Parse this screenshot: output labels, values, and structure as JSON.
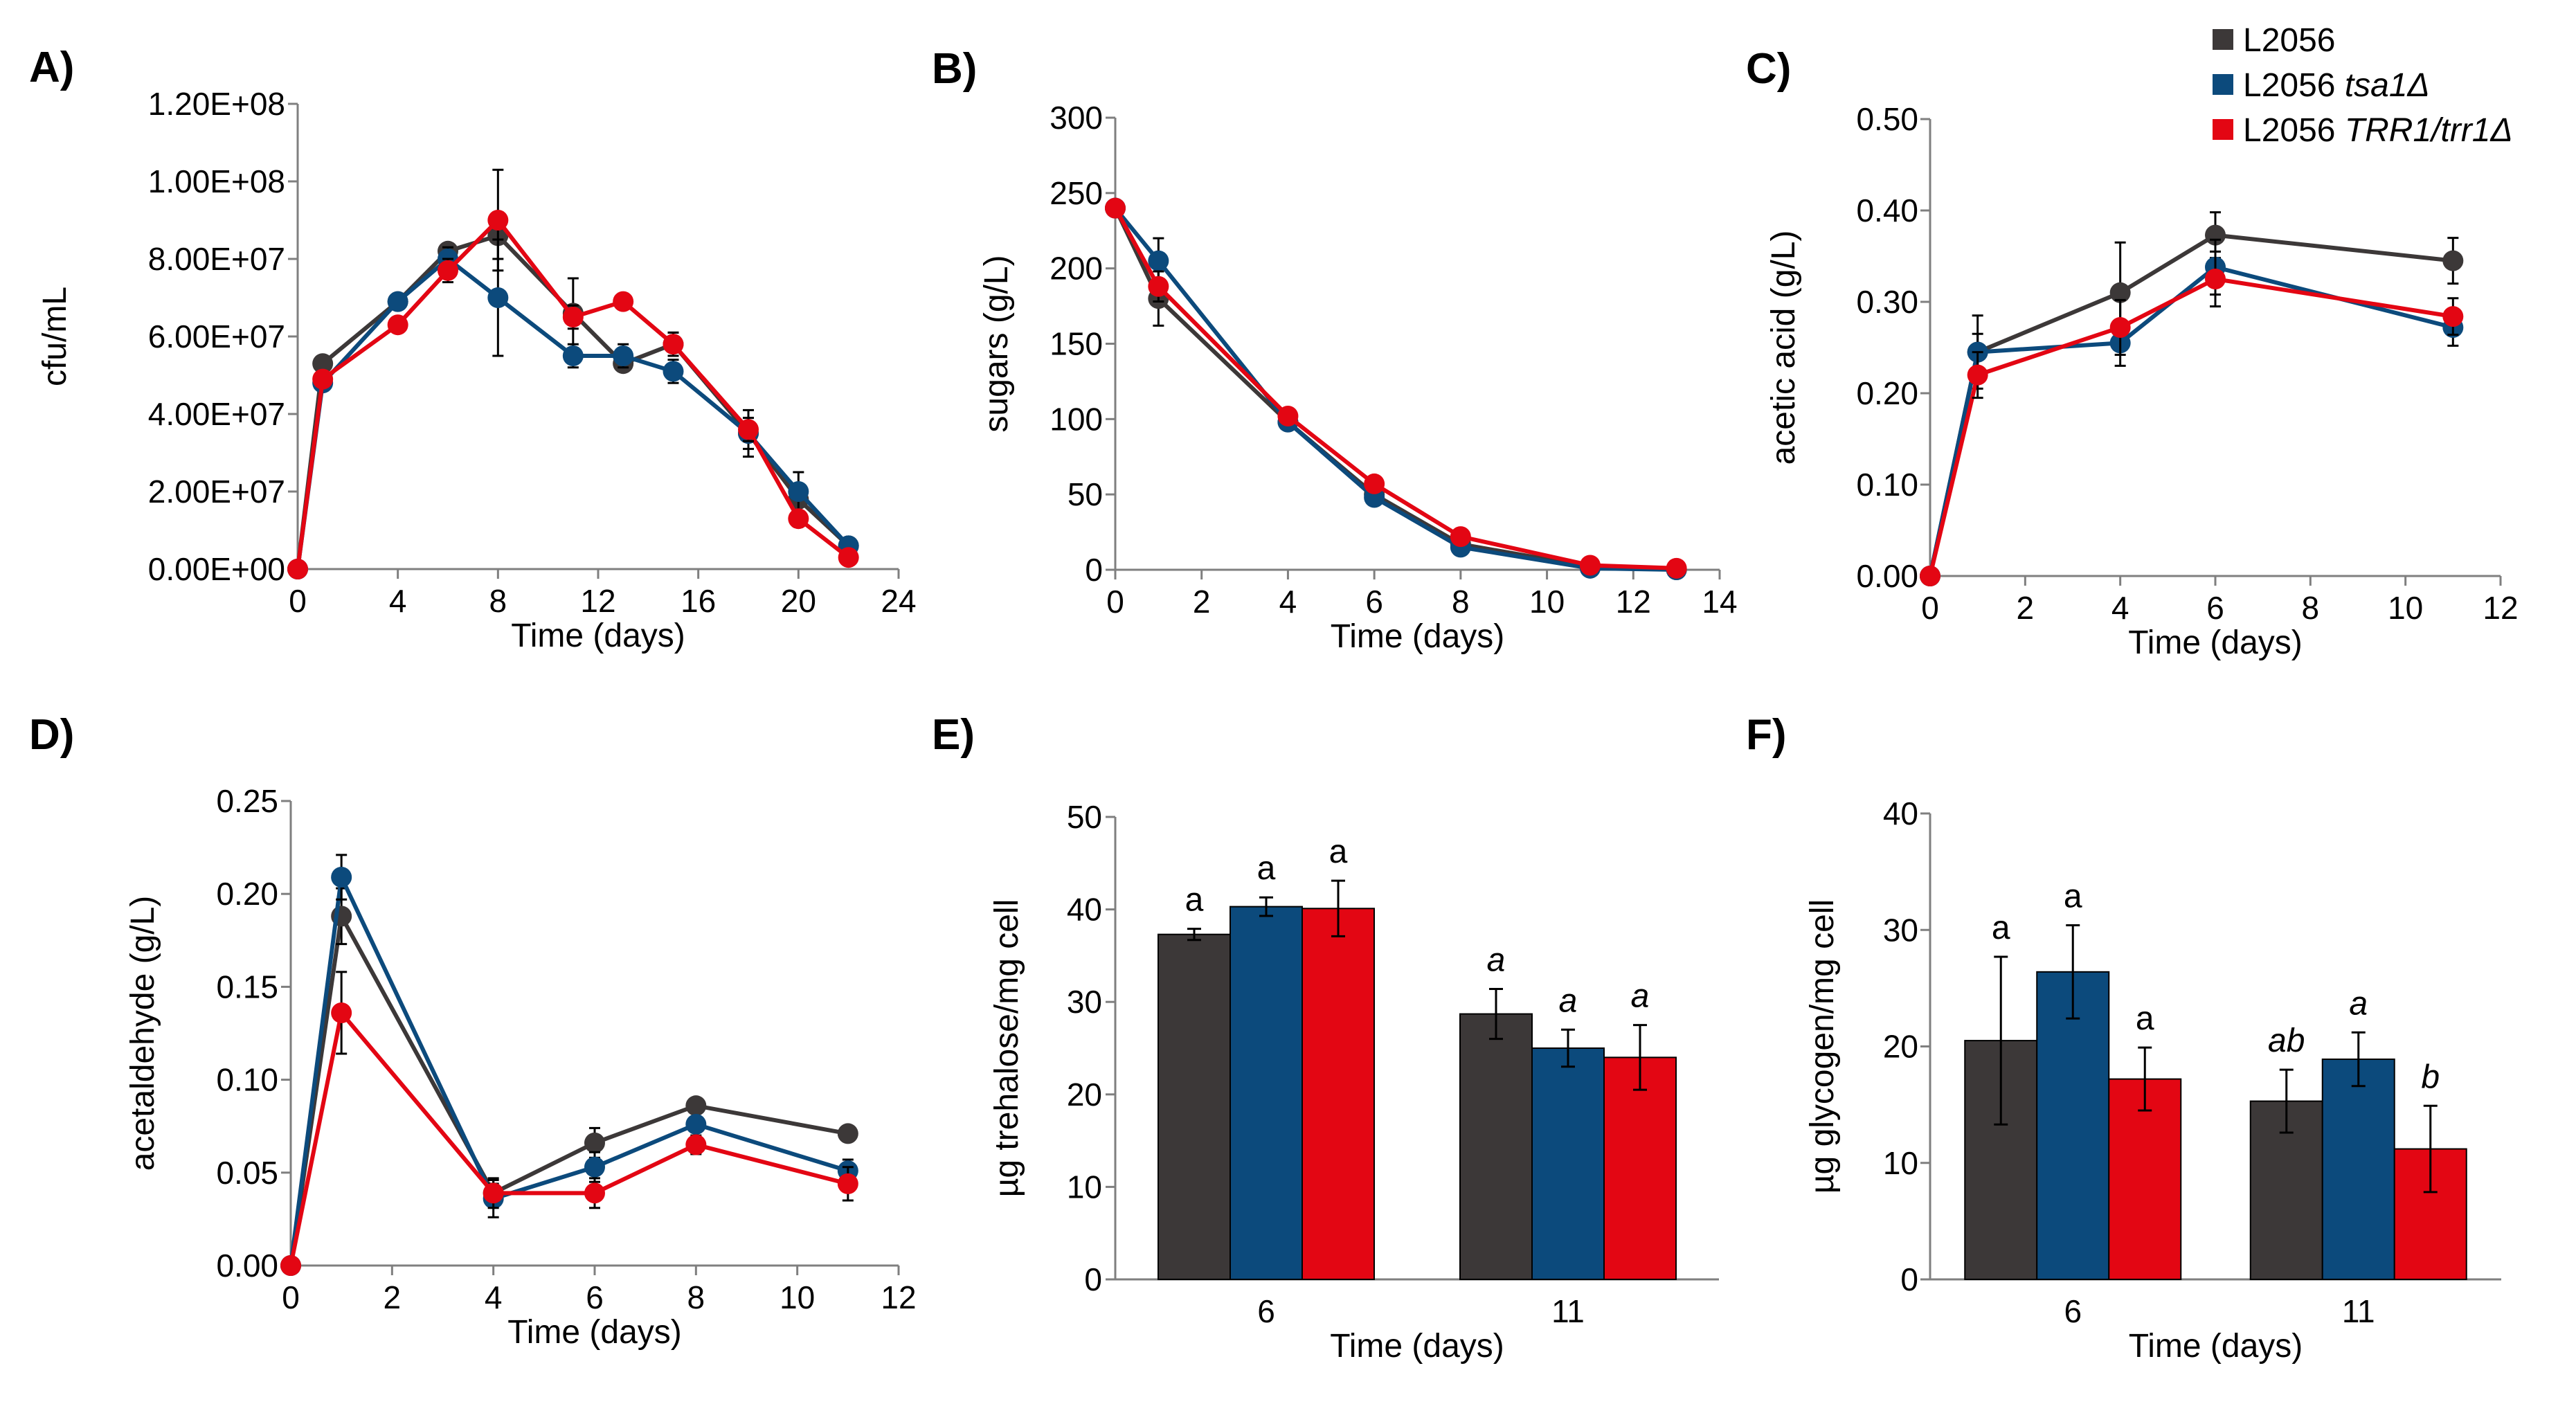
{
  "colors": {
    "L2056": "#3c3838",
    "tsa1": "#0c4a7c",
    "trr1": "#e30613",
    "axis": "#7f7f7f",
    "errorbar": "#000000"
  },
  "legend": {
    "items": [
      {
        "key": "L2056",
        "prefix": "L2056",
        "italic": ""
      },
      {
        "key": "tsa1",
        "prefix": "L2056 ",
        "italic": "tsa1Δ"
      },
      {
        "key": "trr1",
        "prefix": "L2056 ",
        "italic": "TRR1/trr1Δ"
      }
    ]
  },
  "chart_data": [
    {
      "id": "A",
      "panel_label": "A)",
      "type": "line",
      "xlabel": "Time (days)",
      "ylabel": "cfu/mL",
      "xlim": [
        0,
        24
      ],
      "ylim": [
        0,
        120000000
      ],
      "xticks": [
        0,
        4,
        8,
        12,
        16,
        20,
        24
      ],
      "yticks": [
        0,
        20000000,
        40000000,
        60000000,
        80000000,
        100000000,
        120000000
      ],
      "ytick_labels": [
        "0.00E+00",
        "2.00E+07",
        "4.00E+07",
        "6.00E+07",
        "8.00E+07",
        "1.00E+08",
        "1.20E+08"
      ],
      "xtick_labels": [
        "0",
        "4",
        "8",
        "12",
        "16",
        "20",
        "24"
      ],
      "series": [
        {
          "name": "L2056",
          "x": [
            0,
            1,
            4,
            6,
            8,
            11,
            13,
            15,
            18,
            20,
            22
          ],
          "y": [
            0,
            53000000,
            69000000,
            82000000,
            86000000,
            66000000,
            53000000,
            58000000,
            35000000,
            18000000,
            6000000
          ],
          "err": [
            0,
            2000000,
            2000000,
            2000000,
            6000000,
            9000000,
            2000000,
            3000000,
            4000000,
            3000000,
            1000000
          ]
        },
        {
          "name": "L2056 tsa1Δ",
          "x": [
            0,
            1,
            4,
            6,
            8,
            11,
            13,
            15,
            18,
            20,
            22
          ],
          "y": [
            0,
            48000000,
            69000000,
            80000000,
            70000000,
            55000000,
            55000000,
            51000000,
            35000000,
            20000000,
            6000000
          ],
          "err": [
            0,
            2000000,
            2000000,
            3000000,
            15000000,
            3000000,
            3000000,
            3000000,
            6000000,
            5000000,
            1000000
          ]
        },
        {
          "name": "L2056 TRR1/trr1Δ",
          "x": [
            0,
            1,
            4,
            6,
            8,
            11,
            13,
            15,
            18,
            20,
            22
          ],
          "y": [
            0,
            49000000,
            63000000,
            77000000,
            90000000,
            65000000,
            69000000,
            58000000,
            36000000,
            13000000,
            3000000
          ],
          "err": [
            0,
            2000000,
            2000000,
            3000000,
            13000000,
            3000000,
            2000000,
            3000000,
            3000000,
            2000000,
            1000000
          ]
        }
      ]
    },
    {
      "id": "B",
      "panel_label": "B)",
      "type": "line",
      "xlabel": "Time (days)",
      "ylabel": "sugars (g/L)",
      "xlim": [
        0,
        14
      ],
      "ylim": [
        0,
        300
      ],
      "xticks": [
        0,
        2,
        4,
        6,
        8,
        10,
        12,
        14
      ],
      "yticks": [
        0,
        50,
        100,
        150,
        200,
        250,
        300
      ],
      "xtick_labels": [
        "0",
        "2",
        "4",
        "6",
        "8",
        "10",
        "12",
        "14"
      ],
      "ytick_labels": [
        "0",
        "50",
        "100",
        "150",
        "200",
        "250",
        "300"
      ],
      "series": [
        {
          "name": "L2056",
          "x": [
            0,
            1,
            4,
            6,
            8,
            11,
            13
          ],
          "y": [
            240,
            180,
            98,
            50,
            17,
            2,
            0
          ],
          "err": [
            0,
            18,
            3,
            3,
            3,
            1,
            0
          ]
        },
        {
          "name": "L2056 tsa1Δ",
          "x": [
            0,
            1,
            4,
            6,
            8,
            11,
            13
          ],
          "y": [
            240,
            205,
            98,
            48,
            15,
            1,
            0
          ],
          "err": [
            0,
            15,
            3,
            3,
            3,
            1,
            0
          ]
        },
        {
          "name": "L2056 TRR1/trr1Δ",
          "x": [
            0,
            1,
            4,
            6,
            8,
            11,
            13
          ],
          "y": [
            240,
            188,
            102,
            57,
            22,
            3,
            1
          ],
          "err": [
            0,
            10,
            3,
            3,
            3,
            1,
            0
          ]
        }
      ]
    },
    {
      "id": "C",
      "panel_label": "C)",
      "type": "line",
      "xlabel": "Time (days)",
      "ylabel": "acetic acid (g/L)",
      "xlim": [
        0,
        12
      ],
      "ylim": [
        0,
        0.5
      ],
      "xticks": [
        0,
        2,
        4,
        6,
        8,
        10,
        12
      ],
      "yticks": [
        0,
        0.1,
        0.2,
        0.3,
        0.4,
        0.5
      ],
      "xtick_labels": [
        "0",
        "2",
        "4",
        "6",
        "8",
        "10",
        "12"
      ],
      "ytick_labels": [
        "0.00",
        "0.10",
        "0.20",
        "0.30",
        "0.40",
        "0.50"
      ],
      "series": [
        {
          "name": "L2056",
          "x": [
            0,
            1,
            4,
            6,
            11
          ],
          "y": [
            0,
            0.245,
            0.31,
            0.373,
            0.345
          ],
          "err": [
            0,
            0.04,
            0.055,
            0.025,
            0.025
          ]
        },
        {
          "name": "L2056 tsa1Δ",
          "x": [
            0,
            1,
            4,
            6,
            11
          ],
          "y": [
            0,
            0.245,
            0.255,
            0.338,
            0.272
          ],
          "err": [
            0,
            0.02,
            0.025,
            0.03,
            0.02
          ]
        },
        {
          "name": "L2056 TRR1/trr1Δ",
          "x": [
            0,
            1,
            4,
            6,
            11
          ],
          "y": [
            0,
            0.22,
            0.272,
            0.325,
            0.284
          ],
          "err": [
            0,
            0.025,
            0.03,
            0.03,
            0.02
          ]
        }
      ]
    },
    {
      "id": "D",
      "panel_label": "D)",
      "type": "line",
      "xlabel": "Time (days)",
      "ylabel": "acetaldehyde (g/L)",
      "xlim": [
        0,
        12
      ],
      "ylim": [
        0,
        0.25
      ],
      "xticks": [
        0,
        2,
        4,
        6,
        8,
        10,
        12
      ],
      "yticks": [
        0,
        0.05,
        0.1,
        0.15,
        0.2,
        0.25
      ],
      "xtick_labels": [
        "0",
        "2",
        "4",
        "6",
        "8",
        "10",
        "12"
      ],
      "ytick_labels": [
        "0.00",
        "0.05",
        "0.10",
        "0.15",
        "0.20",
        "0.25"
      ],
      "series": [
        {
          "name": "L2056",
          "x": [
            0,
            1,
            4,
            6,
            8,
            11
          ],
          "y": [
            0,
            0.188,
            0.039,
            0.066,
            0.086,
            0.071
          ],
          "err": [
            0,
            0.015,
            0.005,
            0.008,
            0.003,
            0.004
          ]
        },
        {
          "name": "L2056 tsa1Δ",
          "x": [
            0,
            1,
            4,
            6,
            8,
            11
          ],
          "y": [
            0,
            0.209,
            0.036,
            0.053,
            0.076,
            0.051
          ],
          "err": [
            0,
            0.012,
            0.01,
            0.008,
            0.004,
            0.006
          ]
        },
        {
          "name": "L2056 TRR1/trr1Δ",
          "x": [
            0,
            1,
            4,
            6,
            8,
            11
          ],
          "y": [
            0,
            0.136,
            0.039,
            0.039,
            0.065,
            0.044
          ],
          "err": [
            0,
            0.022,
            0.008,
            0.008,
            0.005,
            0.009
          ]
        }
      ]
    },
    {
      "id": "E",
      "panel_label": "E)",
      "type": "bar",
      "xlabel": "Time (days)",
      "ylabel": "µg trehalose/mg cell",
      "categories": [
        "6",
        "11"
      ],
      "ylim": [
        0,
        50
      ],
      "yticks": [
        0,
        10,
        20,
        30,
        40,
        50
      ],
      "ytick_labels": [
        "0",
        "10",
        "20",
        "30",
        "40",
        "50"
      ],
      "series": [
        {
          "name": "L2056",
          "values": [
            37.3,
            28.7
          ],
          "err": [
            0.6,
            2.7
          ],
          "sig": [
            "a",
            "a"
          ],
          "sig_italic": [
            false,
            true
          ]
        },
        {
          "name": "L2056 tsa1Δ",
          "values": [
            40.3,
            25.0
          ],
          "err": [
            1.0,
            2.0
          ],
          "sig": [
            "a",
            "a"
          ],
          "sig_italic": [
            false,
            true
          ]
        },
        {
          "name": "L2056 TRR1/trr1Δ",
          "values": [
            40.1,
            24.0
          ],
          "err": [
            3.0,
            3.5
          ],
          "sig": [
            "a",
            "a"
          ],
          "sig_italic": [
            false,
            true
          ]
        }
      ]
    },
    {
      "id": "F",
      "panel_label": "F)",
      "type": "bar",
      "xlabel": "Time (days)",
      "ylabel": "µg glycogen/mg cell",
      "categories": [
        "6",
        "11"
      ],
      "ylim": [
        0,
        40
      ],
      "yticks": [
        0,
        10,
        20,
        30,
        40
      ],
      "ytick_labels": [
        "0",
        "10",
        "20",
        "30",
        "40"
      ],
      "series": [
        {
          "name": "L2056",
          "values": [
            20.5,
            15.3
          ],
          "err": [
            7.2,
            2.7
          ],
          "sig": [
            "a",
            "ab"
          ],
          "sig_italic": [
            false,
            true
          ]
        },
        {
          "name": "L2056 tsa1Δ",
          "values": [
            26.4,
            18.9
          ],
          "err": [
            4.0,
            2.3
          ],
          "sig": [
            "a",
            "a"
          ],
          "sig_italic": [
            false,
            true
          ]
        },
        {
          "name": "L2056 TRR1/trr1Δ",
          "values": [
            17.2,
            11.2
          ],
          "err": [
            2.7,
            3.7
          ],
          "sig": [
            "a",
            "b"
          ],
          "sig_italic": [
            false,
            true
          ]
        }
      ]
    }
  ]
}
